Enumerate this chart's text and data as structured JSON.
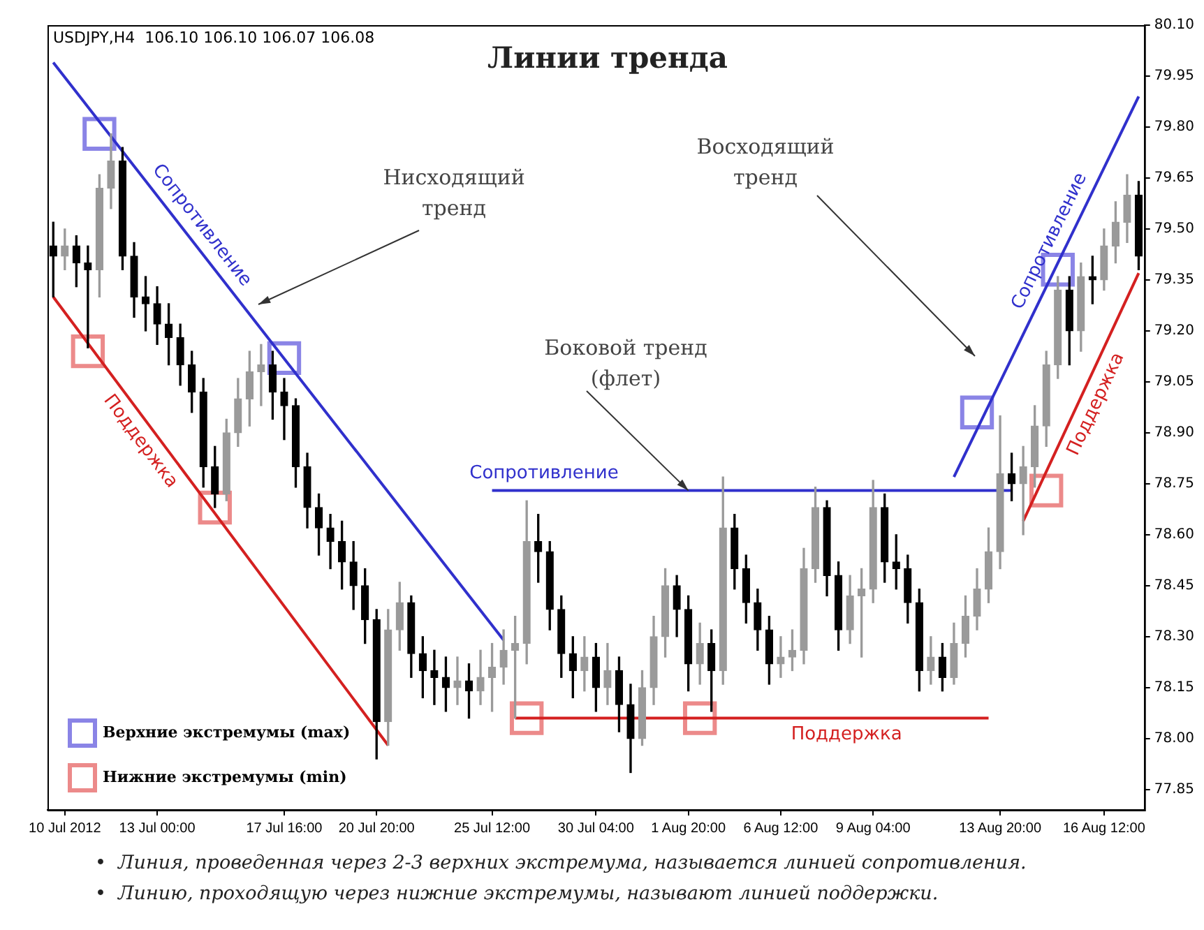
{
  "chart_data": {
    "type": "candlestick",
    "title": "Линии тренда",
    "annotations": [
      "USDJPY,H4  106.10 106.10 106.07 106.08",
      "Нисходящий\nтренд",
      {
        "text": "Боковой тренд\n(флет)",
        "x": "1 Aug 20:00",
        "y": 78.73
      },
      "Восходящий\nтренд",
      "•  Линия, проведенная через 2-3 верхних экстремума, называется линией сопротивления.",
      "•  Линию, проходящую через нижние экстремумы, называют линией поддержки."
    ],
    "categories": [
      null,
      "10 Jul 2012",
      null,
      null,
      null,
      null,
      null,
      null,
      null,
      "13 Jul 00:00",
      null,
      null,
      null,
      null,
      null,
      null,
      null,
      null,
      null,
      null,
      "17 Jul 16:00",
      null,
      null,
      null,
      null,
      null,
      null,
      null,
      "20 Jul 20:00",
      null,
      null,
      null,
      null,
      null,
      null,
      null,
      null,
      null,
      "25 Jul 12:00",
      null,
      null,
      null,
      null,
      null,
      null,
      null,
      null,
      "30 Jul 04:00",
      null,
      null,
      null,
      null,
      null,
      null,
      null,
      "1 Aug 20:00",
      null,
      null,
      null,
      null,
      null,
      null,
      null,
      "6 Aug 12:00",
      null,
      null,
      null,
      null,
      null,
      null,
      null,
      "9 Aug 04:00",
      null,
      null,
      null,
      null,
      null,
      null,
      null,
      null,
      null,
      null,
      "13 Aug 20:00",
      null,
      null,
      null,
      null,
      null,
      null,
      null,
      null,
      "16 Aug 12:00",
      null,
      null,
      null
    ],
    "ohlc": [
      [
        79.45,
        79.52,
        79.3,
        79.42
      ],
      [
        79.42,
        79.5,
        79.38,
        79.45
      ],
      [
        79.45,
        79.48,
        79.33,
        79.4
      ],
      [
        79.4,
        79.45,
        79.15,
        79.38
      ],
      [
        79.38,
        79.66,
        79.3,
        79.62
      ],
      [
        79.62,
        79.78,
        79.56,
        79.7
      ],
      [
        79.7,
        79.74,
        79.38,
        79.42
      ],
      [
        79.42,
        79.46,
        79.24,
        79.3
      ],
      [
        79.3,
        79.36,
        79.2,
        79.28
      ],
      [
        79.28,
        79.33,
        79.16,
        79.22
      ],
      [
        79.22,
        79.28,
        79.1,
        79.18
      ],
      [
        79.18,
        79.22,
        79.04,
        79.1
      ],
      [
        79.1,
        79.14,
        78.96,
        79.02
      ],
      [
        79.02,
        79.06,
        78.74,
        78.8
      ],
      [
        78.8,
        78.86,
        78.68,
        78.72
      ],
      [
        78.72,
        78.94,
        78.7,
        78.9
      ],
      [
        78.9,
        79.06,
        78.86,
        79.0
      ],
      [
        79.0,
        79.14,
        78.92,
        79.08
      ],
      [
        79.08,
        79.16,
        78.98,
        79.1
      ],
      [
        79.1,
        79.14,
        78.94,
        79.02
      ],
      [
        79.02,
        79.06,
        78.88,
        78.98
      ],
      [
        78.98,
        79.0,
        78.74,
        78.8
      ],
      [
        78.8,
        78.84,
        78.62,
        78.68
      ],
      [
        78.68,
        78.72,
        78.54,
        78.62
      ],
      [
        78.62,
        78.66,
        78.5,
        78.58
      ],
      [
        78.58,
        78.64,
        78.44,
        78.52
      ],
      [
        78.52,
        78.58,
        78.38,
        78.45
      ],
      [
        78.45,
        78.5,
        78.28,
        78.35
      ],
      [
        78.35,
        78.38,
        77.94,
        78.05
      ],
      [
        78.05,
        78.38,
        77.98,
        78.32
      ],
      [
        78.32,
        78.46,
        78.26,
        78.4
      ],
      [
        78.4,
        78.42,
        78.18,
        78.25
      ],
      [
        78.25,
        78.3,
        78.12,
        78.2
      ],
      [
        78.2,
        78.26,
        78.1,
        78.18
      ],
      [
        78.18,
        78.24,
        78.08,
        78.15
      ],
      [
        78.15,
        78.24,
        78.1,
        78.17
      ],
      [
        78.17,
        78.22,
        78.06,
        78.14
      ],
      [
        78.14,
        78.26,
        78.1,
        78.18
      ],
      [
        78.18,
        78.28,
        78.08,
        78.21
      ],
      [
        78.21,
        78.32,
        78.16,
        78.26
      ],
      [
        78.26,
        78.36,
        78.06,
        78.28
      ],
      [
        78.28,
        78.7,
        78.22,
        78.58
      ],
      [
        78.58,
        78.66,
        78.46,
        78.55
      ],
      [
        78.55,
        78.58,
        78.32,
        78.38
      ],
      [
        78.38,
        78.42,
        78.18,
        78.25
      ],
      [
        78.25,
        78.3,
        78.12,
        78.2
      ],
      [
        78.2,
        78.3,
        78.14,
        78.24
      ],
      [
        78.24,
        78.28,
        78.08,
        78.15
      ],
      [
        78.15,
        78.28,
        78.1,
        78.2
      ],
      [
        78.2,
        78.24,
        78.02,
        78.1
      ],
      [
        78.1,
        78.16,
        77.9,
        78.0
      ],
      [
        78.0,
        78.2,
        77.98,
        78.15
      ],
      [
        78.15,
        78.36,
        78.1,
        78.3
      ],
      [
        78.3,
        78.5,
        78.24,
        78.45
      ],
      [
        78.45,
        78.48,
        78.3,
        78.38
      ],
      [
        78.38,
        78.42,
        78.14,
        78.22
      ],
      [
        78.22,
        78.34,
        78.16,
        78.28
      ],
      [
        78.28,
        78.32,
        78.08,
        78.2
      ],
      [
        78.2,
        78.77,
        78.16,
        78.62
      ],
      [
        78.62,
        78.66,
        78.44,
        78.5
      ],
      [
        78.5,
        78.54,
        78.34,
        78.4
      ],
      [
        78.4,
        78.44,
        78.26,
        78.32
      ],
      [
        78.32,
        78.36,
        78.16,
        78.22
      ],
      [
        78.22,
        78.3,
        78.18,
        78.24
      ],
      [
        78.24,
        78.32,
        78.2,
        78.26
      ],
      [
        78.26,
        78.56,
        78.22,
        78.5
      ],
      [
        78.5,
        78.74,
        78.46,
        78.68
      ],
      [
        78.68,
        78.7,
        78.42,
        78.48
      ],
      [
        78.48,
        78.52,
        78.26,
        78.32
      ],
      [
        78.32,
        78.48,
        78.28,
        78.42
      ],
      [
        78.42,
        78.5,
        78.24,
        78.44
      ],
      [
        78.44,
        78.76,
        78.4,
        78.68
      ],
      [
        78.68,
        78.72,
        78.46,
        78.52
      ],
      [
        78.52,
        78.6,
        78.44,
        78.5
      ],
      [
        78.5,
        78.54,
        78.34,
        78.4
      ],
      [
        78.4,
        78.44,
        78.14,
        78.2
      ],
      [
        78.2,
        78.3,
        78.16,
        78.24
      ],
      [
        78.24,
        78.28,
        78.14,
        78.18
      ],
      [
        78.18,
        78.34,
        78.16,
        78.28
      ],
      [
        78.28,
        78.42,
        78.24,
        78.36
      ],
      [
        78.36,
        78.5,
        78.32,
        78.44
      ],
      [
        78.44,
        78.62,
        78.4,
        78.55
      ],
      [
        78.55,
        78.95,
        78.5,
        78.78
      ],
      [
        78.78,
        78.84,
        78.7,
        78.75
      ],
      [
        78.75,
        78.86,
        78.6,
        78.8
      ],
      [
        78.8,
        78.98,
        78.74,
        78.92
      ],
      [
        78.92,
        79.14,
        78.86,
        79.1
      ],
      [
        79.1,
        79.36,
        79.06,
        79.32
      ],
      [
        79.32,
        79.36,
        79.1,
        79.2
      ],
      [
        79.2,
        79.4,
        79.14,
        79.36
      ],
      [
        79.36,
        79.42,
        79.28,
        79.35
      ],
      [
        79.35,
        79.5,
        79.32,
        79.45
      ],
      [
        79.45,
        79.58,
        79.4,
        79.52
      ],
      [
        79.52,
        79.66,
        79.46,
        79.6
      ],
      [
        79.6,
        79.64,
        79.38,
        79.42
      ]
    ],
    "ylim": [
      77.79,
      80.1
    ],
    "yticks": [
      {
        "value": 77.85,
        "label": "77.85"
      },
      {
        "value": 78,
        "label": "78.00"
      },
      {
        "value": 78.15,
        "label": "78.15"
      },
      {
        "value": 78.3,
        "label": "78.30"
      },
      {
        "value": 78.45,
        "label": "78.45"
      },
      {
        "value": 78.6,
        "label": "78.60"
      },
      {
        "value": 78.75,
        "label": "78.75"
      },
      {
        "value": 78.9,
        "label": "78.90"
      },
      {
        "value": 79.05,
        "label": "79.05"
      },
      {
        "value": 79.2,
        "label": "79.20"
      },
      {
        "value": 79.35,
        "label": "79.35"
      },
      {
        "value": 79.5,
        "label": "79.50"
      },
      {
        "value": 79.65,
        "label": "79.65"
      },
      {
        "value": 79.8,
        "label": "79.80"
      },
      {
        "value": 79.95,
        "label": "79.95"
      },
      {
        "value": 80.1,
        "label": "80.10"
      }
    ],
    "grid": false,
    "legend": "bottom left",
    "series": [
      {
        "type": "line",
        "name": "Сопротивление",
        "color": "#3030cc",
        "values": [
          79.99,
          null,
          null,
          null,
          null,
          null,
          null,
          null,
          null,
          null,
          null,
          null,
          null,
          null,
          null,
          null,
          null,
          null,
          null,
          null,
          null,
          null,
          null,
          null,
          null,
          null,
          null,
          null,
          null,
          null,
          null,
          null,
          null,
          null,
          null,
          null,
          null,
          null,
          null,
          78.29,
          null,
          null,
          null,
          null,
          null,
          null,
          null,
          null,
          null,
          null,
          null,
          null,
          null,
          null,
          null,
          null,
          null,
          null,
          null,
          null,
          null,
          null,
          null,
          null,
          null,
          null,
          null,
          null,
          null,
          null,
          null,
          null,
          null,
          null,
          null,
          null,
          null,
          null,
          null,
          null,
          null,
          null,
          null,
          null,
          null,
          null,
          null,
          null,
          null,
          null,
          null,
          null,
          null,
          null,
          null
        ]
      },
      {
        "type": "line",
        "name": "Поддержка",
        "color": "#d42020",
        "values": [
          79.3,
          null,
          null,
          null,
          null,
          null,
          null,
          null,
          null,
          null,
          null,
          null,
          null,
          null,
          null,
          null,
          null,
          null,
          null,
          null,
          null,
          null,
          null,
          null,
          null,
          null,
          null,
          null,
          null,
          77.98,
          null,
          null,
          null,
          null,
          null,
          null,
          null,
          null,
          null,
          null,
          null,
          null,
          null,
          null,
          null,
          null,
          null,
          null,
          null,
          null,
          null,
          null,
          null,
          null,
          null,
          null,
          null,
          null,
          null,
          null,
          null,
          null,
          null,
          null,
          null,
          null,
          null,
          null,
          null,
          null,
          null,
          null,
          null,
          null,
          null,
          null,
          null,
          null,
          null,
          null,
          null,
          null,
          null,
          null,
          null,
          null,
          null,
          null,
          null,
          null,
          null,
          null,
          null,
          null,
          null
        ]
      },
      {
        "type": "line",
        "name": "Сопротивление",
        "color": "#3030cc",
        "values": [
          null,
          null,
          null,
          null,
          null,
          null,
          null,
          null,
          null,
          null,
          null,
          null,
          null,
          null,
          null,
          null,
          null,
          null,
          null,
          null,
          null,
          null,
          null,
          null,
          null,
          null,
          null,
          null,
          null,
          null,
          null,
          null,
          null,
          null,
          null,
          null,
          null,
          null,
          78.73,
          null,
          null,
          null,
          null,
          null,
          null,
          null,
          null,
          null,
          null,
          null,
          null,
          null,
          null,
          null,
          null,
          null,
          null,
          null,
          null,
          null,
          null,
          null,
          null,
          null,
          null,
          null,
          null,
          null,
          null,
          null,
          null,
          null,
          null,
          null,
          null,
          null,
          null,
          null,
          null,
          null,
          null,
          null,
          null,
          78.73,
          null,
          null,
          null,
          null,
          null,
          null,
          null,
          null,
          null,
          null,
          null
        ]
      },
      {
        "type": "line",
        "name": "Поддержка",
        "color": "#d42020",
        "values": [
          null,
          null,
          null,
          null,
          null,
          null,
          null,
          null,
          null,
          null,
          null,
          null,
          null,
          null,
          null,
          null,
          null,
          null,
          null,
          null,
          null,
          null,
          null,
          null,
          null,
          null,
          null,
          null,
          null,
          null,
          null,
          null,
          null,
          null,
          null,
          null,
          null,
          null,
          null,
          null,
          78.06,
          null,
          null,
          null,
          null,
          null,
          null,
          null,
          null,
          null,
          null,
          null,
          null,
          null,
          null,
          null,
          null,
          null,
          null,
          null,
          null,
          null,
          null,
          null,
          null,
          null,
          null,
          null,
          null,
          null,
          null,
          null,
          null,
          null,
          null,
          null,
          null,
          null,
          null,
          null,
          null,
          78.06,
          null,
          null,
          null,
          null,
          null,
          null,
          null,
          null,
          null,
          null,
          null,
          null,
          null
        ]
      },
      {
        "type": "line",
        "name": "Сопротивление",
        "color": "#3030cc",
        "values": [
          null,
          null,
          null,
          null,
          null,
          null,
          null,
          null,
          null,
          null,
          null,
          null,
          null,
          null,
          null,
          null,
          null,
          null,
          null,
          null,
          null,
          null,
          null,
          null,
          null,
          null,
          null,
          null,
          null,
          null,
          null,
          null,
          null,
          null,
          null,
          null,
          null,
          null,
          null,
          null,
          null,
          null,
          null,
          null,
          null,
          null,
          null,
          null,
          null,
          null,
          null,
          null,
          null,
          null,
          null,
          null,
          null,
          null,
          null,
          null,
          null,
          null,
          null,
          null,
          null,
          null,
          null,
          null,
          null,
          null,
          null,
          null,
          null,
          null,
          null,
          null,
          null,
          null,
          78.77,
          null,
          null,
          null,
          null,
          null,
          null,
          null,
          null,
          null,
          null,
          null,
          null,
          null,
          null,
          null,
          79.89
        ]
      },
      {
        "type": "line",
        "name": "Поддержка",
        "color": "#d42020",
        "values": [
          null,
          null,
          null,
          null,
          null,
          null,
          null,
          null,
          null,
          null,
          null,
          null,
          null,
          null,
          null,
          null,
          null,
          null,
          null,
          null,
          null,
          null,
          null,
          null,
          null,
          null,
          null,
          null,
          null,
          null,
          null,
          null,
          null,
          null,
          null,
          null,
          null,
          null,
          null,
          null,
          null,
          null,
          null,
          null,
          null,
          null,
          null,
          null,
          null,
          null,
          null,
          null,
          null,
          null,
          null,
          null,
          null,
          null,
          null,
          null,
          null,
          null,
          null,
          null,
          null,
          null,
          null,
          null,
          null,
          null,
          null,
          null,
          null,
          null,
          null,
          null,
          null,
          null,
          null,
          null,
          null,
          null,
          null,
          null,
          78.64,
          null,
          null,
          null,
          null,
          null,
          null,
          null,
          null,
          null,
          79.37
        ]
      },
      {
        "type": "scatter",
        "name": "Верхние экстремумы (max)",
        "color": "#8a84e6",
        "marker": "square",
        "values": [
          null,
          null,
          null,
          null,
          79.78,
          null,
          null,
          null,
          null,
          null,
          null,
          null,
          null,
          null,
          null,
          null,
          null,
          null,
          null,
          null,
          79.12,
          null,
          null,
          null,
          null,
          null,
          null,
          null,
          null,
          null,
          null,
          null,
          null,
          null,
          null,
          null,
          null,
          null,
          null,
          null,
          null,
          null,
          null,
          null,
          null,
          null,
          null,
          null,
          null,
          null,
          null,
          null,
          null,
          null,
          null,
          null,
          null,
          null,
          null,
          null,
          null,
          null,
          null,
          null,
          null,
          null,
          null,
          null,
          null,
          null,
          null,
          null,
          null,
          null,
          null,
          null,
          null,
          null,
          null,
          null,
          78.96,
          null,
          null,
          null,
          null,
          null,
          null,
          79.38,
          null,
          null,
          null,
          null,
          null,
          null,
          null
        ]
      },
      {
        "type": "scatter",
        "name": "Нижние экстремумы (min)",
        "color": "#ec8a8a",
        "marker": "square",
        "values": [
          null,
          null,
          null,
          79.14,
          null,
          null,
          null,
          null,
          null,
          null,
          null,
          null,
          null,
          null,
          78.68,
          null,
          null,
          null,
          null,
          null,
          null,
          null,
          null,
          null,
          null,
          null,
          null,
          null,
          null,
          null,
          null,
          null,
          null,
          null,
          null,
          null,
          null,
          null,
          null,
          null,
          null,
          78.06,
          null,
          null,
          null,
          null,
          null,
          null,
          null,
          null,
          null,
          null,
          null,
          null,
          null,
          null,
          78.06,
          null,
          null,
          null,
          null,
          null,
          null,
          null,
          null,
          null,
          null,
          null,
          null,
          null,
          null,
          null,
          null,
          null,
          null,
          null,
          null,
          null,
          null,
          null,
          null,
          null,
          null,
          null,
          null,
          null,
          78.73,
          null,
          null,
          null,
          null,
          null,
          null,
          null,
          null
        ]
      }
    ]
  }
}
